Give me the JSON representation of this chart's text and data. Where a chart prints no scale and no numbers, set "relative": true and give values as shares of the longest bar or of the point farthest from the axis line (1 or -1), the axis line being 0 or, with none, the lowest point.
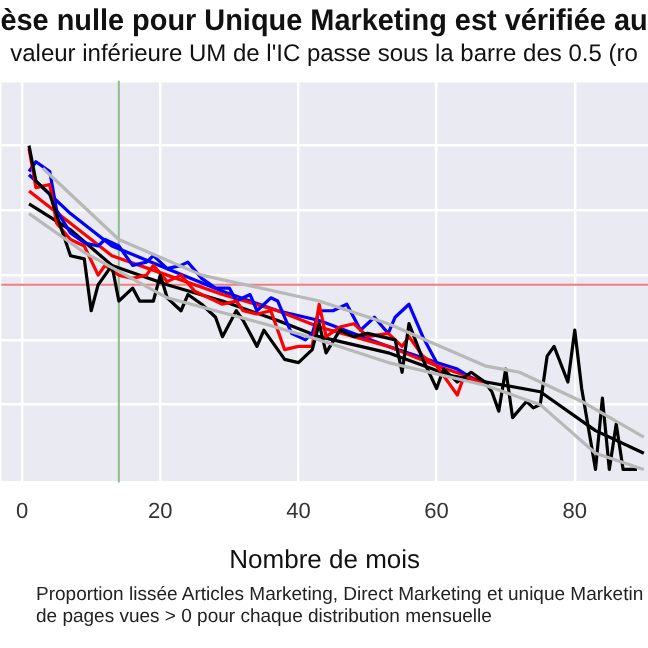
{
  "chart_data": {
    "type": "line",
    "title": "èse nulle pour Unique Marketing est vérifiée au",
    "subtitle": "valeur inférieure UM de l'IC passe sous la barre des 0.5 (ro",
    "xlabel": "Nombre de mois",
    "relative": true,
    "xlim": [
      -3,
      90.6
    ],
    "xticks": [
      0,
      20,
      40,
      60,
      80
    ],
    "grid": true,
    "legend": false,
    "marker": "none",
    "line_style": "solid",
    "annotations": [
      "Proportion lissée Articles Marketing, Direct Marketing et unique Marketin",
      "de pages vues > 0 pour chaque distribution mensuelle"
    ],
    "ref_lines": [
      {
        "axis": "y",
        "value": 0.57,
        "color": "#f08080"
      },
      {
        "axis": "x",
        "value": 14,
        "color": "#8fbc8f"
      }
    ],
    "series": [
      {
        "color": "#b8b8b8",
        "x": [
          3,
          14,
          26,
          43,
          53,
          67,
          72,
          81,
          90
        ],
        "values": [
          0.93,
          0.71,
          0.6,
          0.52,
          0.45,
          0.32,
          0.3,
          0.21,
          0.1
        ]
      },
      {
        "color": "#b8b8b8",
        "x": [
          1,
          9,
          21,
          35,
          43,
          53,
          67,
          75,
          83,
          90
        ],
        "values": [
          0.79,
          0.67,
          0.53,
          0.45,
          0.4,
          0.33,
          0.26,
          0.2,
          0.05,
          0
        ]
      },
      {
        "color": "#000000",
        "x": [
          1,
          2,
          4,
          7,
          9,
          10,
          11,
          13,
          14,
          16,
          17,
          19,
          20,
          21,
          23,
          24,
          26,
          28,
          29,
          31,
          32,
          34,
          35,
          38,
          40,
          42,
          43,
          44,
          46,
          48,
          50,
          52,
          54,
          55,
          56,
          58,
          60,
          61,
          63,
          65,
          67,
          68,
          69,
          70,
          71,
          73,
          74,
          75,
          76,
          77,
          79,
          80,
          81,
          83,
          84,
          85,
          86,
          87,
          89
        ],
        "values": [
          1,
          0.89,
          0.85,
          0.66,
          0.65,
          0.49,
          0.57,
          0.63,
          0.52,
          0.56,
          0.52,
          0.52,
          0.6,
          0.53,
          0.49,
          0.54,
          0.51,
          0.47,
          0.41,
          0.49,
          0.46,
          0.38,
          0.43,
          0.34,
          0.33,
          0.37,
          0.45,
          0.36,
          0.43,
          0.41,
          0.42,
          0.41,
          0.4,
          0.3,
          0.45,
          0.34,
          0.25,
          0.31,
          0.27,
          0.3,
          0.27,
          0.24,
          0.18,
          0.31,
          0.16,
          0.21,
          0.19,
          0.2,
          0.35,
          0.38,
          0.27,
          0.43,
          0.25,
          0,
          0.22,
          0,
          0.14,
          0,
          0
        ]
      },
      {
        "color": "#ff0000",
        "x": [
          1,
          2,
          4,
          5,
          7,
          9,
          11,
          12,
          14,
          16,
          18,
          19,
          21,
          23,
          25,
          27,
          29,
          31,
          32,
          34,
          36,
          38,
          40,
          42,
          43,
          44,
          46,
          48,
          50,
          53,
          55,
          56,
          58,
          60,
          63,
          64,
          66,
          67
        ],
        "values": [
          0.99,
          0.87,
          0.88,
          0.76,
          0.71,
          0.69,
          0.6,
          0.63,
          0.6,
          0.59,
          0.6,
          0.63,
          0.58,
          0.6,
          0.55,
          0.53,
          0.51,
          0.52,
          0.49,
          0.48,
          0.49,
          0.37,
          0.38,
          0.38,
          0.51,
          0.41,
          0.44,
          0.45,
          0.41,
          0.42,
          0.38,
          0.41,
          0.35,
          0.32,
          0.23,
          0.29,
          0.27,
          0.27
        ]
      },
      {
        "color": "#0000ff",
        "x": [
          1,
          2,
          4,
          5,
          7,
          9,
          11,
          12,
          14,
          16,
          18,
          19,
          21,
          23,
          24,
          26,
          28,
          30,
          31,
          33,
          34,
          36,
          37,
          39,
          41,
          42,
          43,
          45,
          47,
          49,
          51,
          53,
          54,
          56,
          58,
          60,
          63,
          66
        ],
        "values": [
          0.92,
          0.95,
          0.92,
          0.8,
          0.73,
          0.7,
          0.69,
          0.71,
          0.69,
          0.63,
          0.64,
          0.66,
          0.62,
          0.63,
          0.64,
          0.59,
          0.56,
          0.56,
          0.52,
          0.54,
          0.49,
          0.53,
          0.52,
          0.42,
          0.4,
          0.42,
          0.49,
          0.49,
          0.51,
          0.43,
          0.47,
          0.42,
          0.47,
          0.51,
          0.41,
          0.33,
          0.31,
          0.27
        ]
      },
      {
        "color": "#000000",
        "x": [
          1,
          7,
          13,
          21,
          29,
          37,
          43,
          53,
          62,
          75,
          83,
          90
        ],
        "values": [
          0.82,
          0.74,
          0.63,
          0.57,
          0.52,
          0.46,
          0.41,
          0.36,
          0.29,
          0.24,
          0.12,
          0.05
        ]
      },
      {
        "color": "#ff0000",
        "x": [
          1,
          7,
          13,
          21,
          29,
          37,
          43,
          53,
          60,
          67
        ],
        "values": [
          0.86,
          0.76,
          0.66,
          0.6,
          0.54,
          0.49,
          0.44,
          0.38,
          0.32,
          0.27
        ]
      },
      {
        "color": "#0000ff",
        "x": [
          1,
          7,
          13,
          21,
          29,
          37,
          43,
          53,
          60
        ],
        "values": [
          0.91,
          0.79,
          0.69,
          0.62,
          0.55,
          0.49,
          0.46,
          0.38,
          0.33
        ]
      }
    ]
  }
}
